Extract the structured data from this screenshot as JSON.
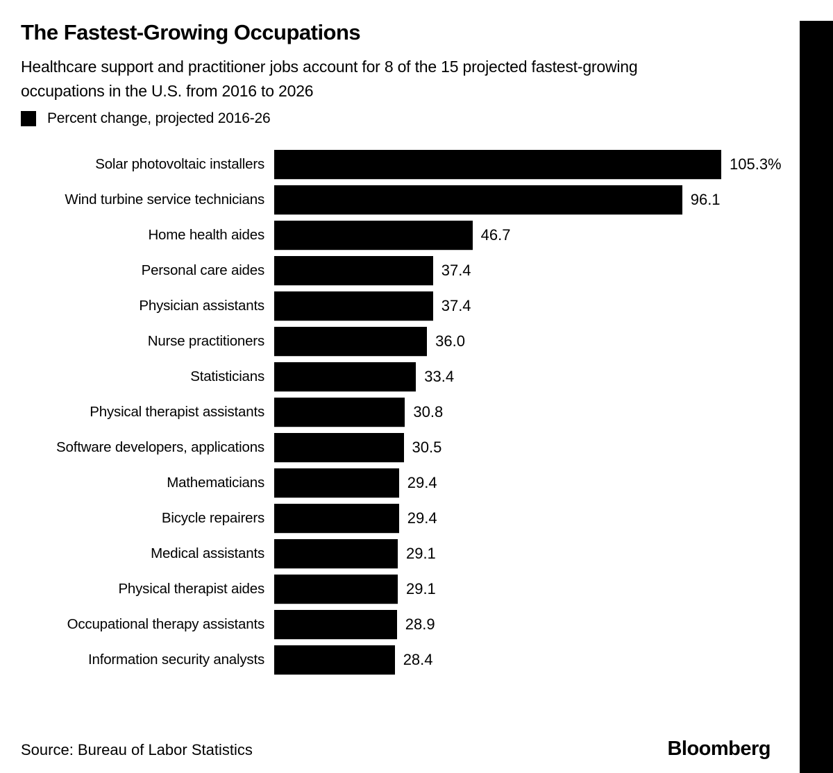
{
  "header": {
    "title": "The Fastest-Growing Occupations",
    "subtitle_lines": [
      "Healthcare support and practitioner jobs account for 8 of the 15 projected fastest-growing",
      "occupations in the U.S. from 2016 to 2026"
    ]
  },
  "legend": {
    "swatch_color": "#000000",
    "label": "Percent change, projected 2016-26"
  },
  "chart_data": {
    "type": "bar",
    "orientation": "horizontal",
    "title": "The Fastest-Growing Occupations",
    "subtitle": "Healthcare support and practitioner jobs account for 8 of the 15 projected fastest-growing occupations in the U.S. from 2016 to 2026",
    "legend_label": "Percent change, projected 2016-26",
    "xlabel": "",
    "ylabel": "",
    "xlim": [
      0,
      105.3
    ],
    "grid": false,
    "bar_color": "#000000",
    "categories": [
      "Solar photovoltaic installers",
      "Wind turbine service technicians",
      "Home health aides",
      "Personal care aides",
      "Physician assistants",
      "Nurse practitioners",
      "Statisticians",
      "Physical therapist assistants",
      "Software developers, applications",
      "Mathematicians",
      "Bicycle repairers",
      "Medical assistants",
      "Physical therapist aides",
      "Occupational therapy assistants",
      "Information security analysts"
    ],
    "values": [
      105.3,
      96.1,
      46.7,
      37.4,
      37.4,
      36.0,
      33.4,
      30.8,
      30.5,
      29.4,
      29.4,
      29.1,
      29.1,
      28.9,
      28.4
    ],
    "value_labels": [
      "105.3%",
      "96.1",
      "46.7",
      "37.4",
      "37.4",
      "36.0",
      "33.4",
      "30.8",
      "30.5",
      "29.4",
      "29.4",
      "29.1",
      "29.1",
      "28.9",
      "28.4"
    ]
  },
  "footer": {
    "source": "Source: Bureau of Labor Statistics",
    "brand": "Bloomberg"
  },
  "colors": {
    "background": "#ffffff",
    "bar": "#000000",
    "text": "#000000",
    "right_strip": "#000000"
  }
}
